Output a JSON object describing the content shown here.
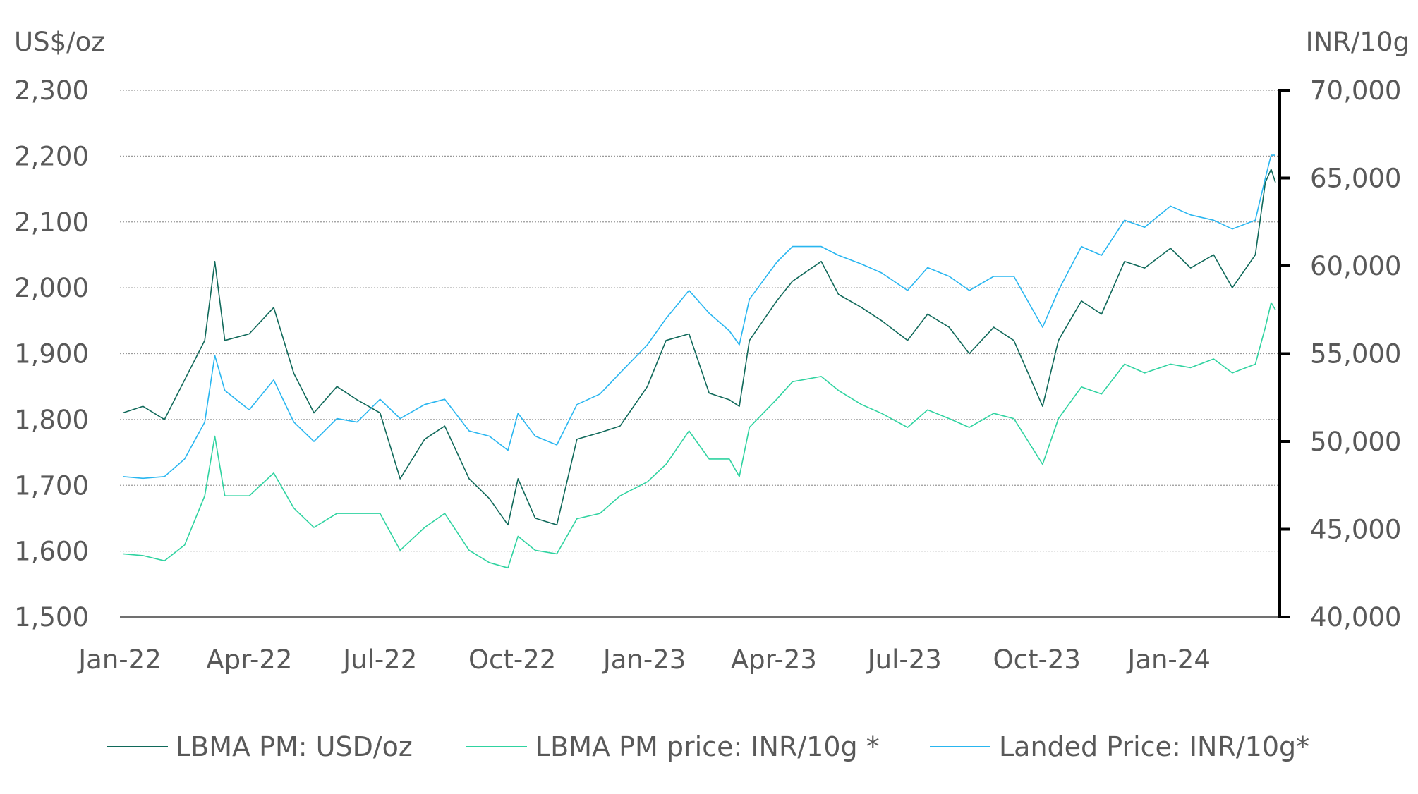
{
  "chart_data": {
    "type": "line",
    "title": "",
    "left_axis": {
      "label": "US$/oz",
      "ylim": [
        1500,
        2300
      ],
      "ticks": [
        "1,500",
        "1,600",
        "1,700",
        "1,800",
        "1,900",
        "2,000",
        "2,100",
        "2,200",
        "2,300"
      ],
      "tick_values": [
        1500,
        1600,
        1700,
        1800,
        1900,
        2000,
        2100,
        2200,
        2300
      ]
    },
    "right_axis": {
      "label": "INR/10g",
      "ylim": [
        40000,
        70000
      ],
      "ticks": [
        "40,000",
        "45,000",
        "50,000",
        "55,000",
        "60,000",
        "65,000",
        "70,000"
      ],
      "tick_values": [
        40000,
        45000,
        50000,
        55000,
        60000,
        65000,
        70000
      ]
    },
    "x_axis": {
      "xlim": [
        "2022-01-01",
        "2024-03-18"
      ],
      "ticks": [
        "Jan-22",
        "Apr-22",
        "Jul-22",
        "Oct-22",
        "Jan-23",
        "Apr-23",
        "Jul-23",
        "Oct-23",
        "Jan-24"
      ],
      "tick_dates": [
        "2022-01-01",
        "2022-04-01",
        "2022-07-01",
        "2022-10-01",
        "2023-01-01",
        "2023-04-01",
        "2023-07-01",
        "2023-10-01",
        "2024-01-01"
      ]
    },
    "grid": "horizontal dotted",
    "legend_position": "bottom",
    "x": [
      "2022-01-03",
      "2022-01-17",
      "2022-02-01",
      "2022-02-15",
      "2022-03-01",
      "2022-03-08",
      "2022-03-15",
      "2022-04-01",
      "2022-04-18",
      "2022-05-02",
      "2022-05-16",
      "2022-06-01",
      "2022-06-15",
      "2022-07-01",
      "2022-07-15",
      "2022-08-01",
      "2022-08-15",
      "2022-09-01",
      "2022-09-15",
      "2022-09-28",
      "2022-10-05",
      "2022-10-17",
      "2022-11-01",
      "2022-11-15",
      "2022-12-01",
      "2022-12-15",
      "2023-01-03",
      "2023-01-16",
      "2023-02-01",
      "2023-02-15",
      "2023-03-01",
      "2023-03-08",
      "2023-03-15",
      "2023-04-03",
      "2023-04-14",
      "2023-05-04",
      "2023-05-16",
      "2023-06-01",
      "2023-06-15",
      "2023-07-03",
      "2023-07-17",
      "2023-08-01",
      "2023-08-15",
      "2023-09-01",
      "2023-09-15",
      "2023-10-05",
      "2023-10-16",
      "2023-11-01",
      "2023-11-15",
      "2023-12-01",
      "2023-12-15",
      "2024-01-02",
      "2024-01-16",
      "2024-02-01",
      "2024-02-14",
      "2024-03-01",
      "2024-03-08",
      "2024-03-12",
      "2024-03-15"
    ],
    "series": [
      {
        "name": "LBMA PM: USD/oz",
        "axis": "left",
        "color": "#10695a",
        "values": [
          1810,
          1820,
          1800,
          1860,
          1920,
          2040,
          1920,
          1930,
          1970,
          1870,
          1810,
          1850,
          1830,
          1810,
          1710,
          1770,
          1790,
          1710,
          1680,
          1640,
          1710,
          1650,
          1640,
          1770,
          1780,
          1790,
          1850,
          1920,
          1930,
          1840,
          1830,
          1820,
          1920,
          1980,
          2010,
          2040,
          1990,
          1970,
          1950,
          1920,
          1960,
          1940,
          1900,
          1940,
          1920,
          1820,
          1920,
          1980,
          1960,
          2040,
          2030,
          2060,
          2030,
          2050,
          2000,
          2050,
          2160,
          2180,
          2160
        ]
      },
      {
        "name": "LBMA PM price: INR/10g *",
        "axis": "right",
        "color": "#2fd3a0",
        "values": [
          43600,
          43500,
          43200,
          44100,
          46900,
          50300,
          46900,
          46900,
          48200,
          46200,
          45100,
          45900,
          45900,
          45900,
          43800,
          45100,
          45900,
          43800,
          43100,
          42800,
          44600,
          43800,
          43600,
          45600,
          45900,
          46900,
          47700,
          48700,
          50600,
          49000,
          49000,
          48000,
          50800,
          52400,
          53400,
          53700,
          52900,
          52100,
          51600,
          50800,
          51800,
          51300,
          50800,
          51600,
          51300,
          48700,
          51300,
          53100,
          52700,
          54400,
          53900,
          54400,
          54200,
          54700,
          53900,
          54400,
          56500,
          57900,
          57500
        ]
      },
      {
        "name": "Landed Price: INR/10g*",
        "axis": "right",
        "color": "#29b6f0",
        "values": [
          48000,
          47900,
          48000,
          49000,
          51100,
          54900,
          52900,
          51800,
          53500,
          51100,
          50000,
          51300,
          51100,
          52400,
          51300,
          52100,
          52400,
          50600,
          50300,
          49500,
          51600,
          50300,
          49800,
          52100,
          52700,
          53900,
          55500,
          57000,
          58600,
          57300,
          56300,
          55500,
          58100,
          60200,
          61100,
          61100,
          60600,
          60100,
          59600,
          58600,
          59900,
          59400,
          58600,
          59400,
          59400,
          56500,
          58600,
          61100,
          60600,
          62600,
          62200,
          63400,
          62900,
          62600,
          62100,
          62600,
          65000,
          66300,
          66300
        ]
      }
    ]
  }
}
